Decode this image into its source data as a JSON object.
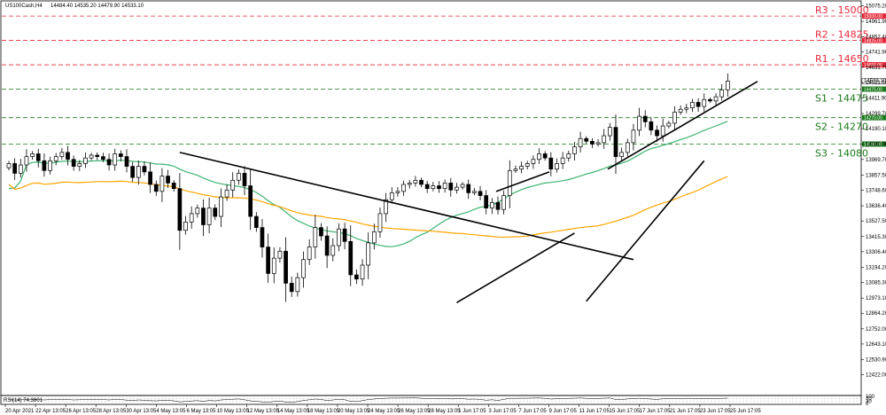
{
  "header": {
    "symbol": "US100Cash,H4",
    "ohlc": "14484.40  14535.20  14479.90  14533.10"
  },
  "colors": {
    "candle_up": "#000000",
    "candle_down": "#000000",
    "ma_fast": "#3cb371",
    "ma_slow": "#ffa500",
    "resistance": "#e8293a",
    "support": "#1b7a1b",
    "trendline": "#000000",
    "grid_dash": "#999999"
  },
  "chart_data": [
    {
      "type": "candlestick",
      "title": "",
      "xlabel": "",
      "ylabel": "",
      "ylim": [
        12375,
        15090
      ],
      "x_ticks": [
        "20 Apr 2021",
        "22 Apr 13:05",
        "26 Apr 13:05",
        "28 Apr 13:05",
        "30 Apr 13:05",
        "4 May 13:05",
        "6 May 13:05",
        "10 May 13:05",
        "12 May 13:05",
        "14 May 13:05",
        "18 May 13:05",
        "20 May 13:05",
        "24 May 13:05",
        "26 May 13:05",
        "28 May 13:05",
        "1 Jun 17:05",
        "3 Jun 17:05",
        "7 Jun 17:05",
        "9 Jun 17:05",
        "11 Jun 17:05",
        "15 Jun 17:05",
        "17 Jun 17:05",
        "21 Jun 17:05",
        "23 Jun 17:05",
        "25 Jun 17:05"
      ],
      "y_ticks": [
        "15075.20",
        "14961.90",
        "14852.40",
        "14741.90",
        "14631.70",
        "14521.50",
        "14411.90",
        "14299.70",
        "14190.10",
        "14080.00",
        "13969.70",
        "13857.50",
        "13748.60",
        "13636.40",
        "13527.50",
        "13415.30",
        "13306.40",
        "13194.20",
        "13085.30",
        "12973.10",
        "12864.20",
        "12752.00",
        "12643.10",
        "12530.90",
        "12422.00"
      ],
      "current_price_tag": "14533.10",
      "levels": [
        {
          "label": "R3 - 15000",
          "value": 15000,
          "tag": "15000.00",
          "kind": "resistance"
        },
        {
          "label": "R2 - 14825",
          "value": 14825,
          "tag": "14825.00",
          "kind": "resistance"
        },
        {
          "label": "R1 - 14650",
          "value": 14650,
          "tag": "14650.00",
          "kind": "resistance"
        },
        {
          "label": "S1 - 14475",
          "value": 14475,
          "tag": "14475.00",
          "kind": "support"
        },
        {
          "label": "S2 - 14270",
          "value": 14270,
          "tag": "14270.00",
          "kind": "support"
        },
        {
          "label": "S3 - 14080",
          "value": 14080,
          "tag": "14080.00",
          "kind": "support"
        }
      ],
      "closes": [
        13940,
        13870,
        13930,
        13990,
        14010,
        13960,
        13890,
        13960,
        13990,
        14020,
        13970,
        13920,
        13940,
        13980,
        14000,
        13990,
        13970,
        13930,
        14010,
        13990,
        13920,
        13840,
        13920,
        13880,
        13790,
        13740,
        13850,
        13800,
        13760,
        13460,
        13520,
        13580,
        13620,
        13500,
        13620,
        13560,
        13700,
        13750,
        13820,
        13870,
        13780,
        13560,
        13480,
        13340,
        13150,
        13260,
        13310,
        13080,
        13020,
        13120,
        13250,
        13340,
        13480,
        13420,
        13280,
        13350,
        13470,
        13380,
        13140,
        13110,
        13210,
        13370,
        13450,
        13580,
        13680,
        13730,
        13740,
        13790,
        13800,
        13820,
        13790,
        13760,
        13780,
        13760,
        13800,
        13750,
        13770,
        13790,
        13730,
        13740,
        13710,
        13620,
        13660,
        13610,
        13710,
        13890,
        13900,
        13920,
        13940,
        13970,
        14010,
        13980,
        13900,
        13940,
        13980,
        14010,
        14060,
        14120,
        14100,
        14080,
        14090,
        14140,
        14200,
        13990,
        14020,
        14090,
        14180,
        14280,
        14240,
        14180,
        14140,
        14210,
        14230,
        14310,
        14330,
        14340,
        14380,
        14350,
        14400,
        14390,
        14420,
        14470,
        14533
      ]
    },
    {
      "type": "line",
      "title": "",
      "header": "RSI(14) 74.3801",
      "ylim": [
        0,
        100
      ],
      "y_ticks": [
        "100",
        "70",
        "30",
        "0"
      ],
      "values": [
        55,
        50,
        53,
        58,
        60,
        56,
        50,
        55,
        58,
        60,
        55,
        50,
        52,
        56,
        58,
        57,
        55,
        50,
        57,
        55,
        48,
        42,
        50,
        46,
        40,
        36,
        46,
        42,
        38,
        22,
        28,
        35,
        40,
        30,
        42,
        36,
        50,
        55,
        60,
        64,
        52,
        36,
        30,
        22,
        16,
        28,
        34,
        20,
        16,
        28,
        42,
        52,
        62,
        56,
        42,
        50,
        60,
        52,
        30,
        26,
        40,
        56,
        62,
        70,
        74,
        76,
        76,
        78,
        78,
        79,
        74,
        70,
        72,
        68,
        72,
        64,
        66,
        68,
        60,
        62,
        58,
        46,
        52,
        44,
        58,
        72,
        72,
        74,
        74,
        76,
        78,
        72,
        62,
        66,
        70,
        72,
        74,
        77,
        72,
        70,
        71,
        74,
        77,
        55,
        58,
        64,
        70,
        74,
        68,
        62,
        58,
        66,
        66,
        70,
        71,
        72,
        73,
        68,
        70,
        69,
        71,
        73,
        74.4
      ]
    }
  ]
}
